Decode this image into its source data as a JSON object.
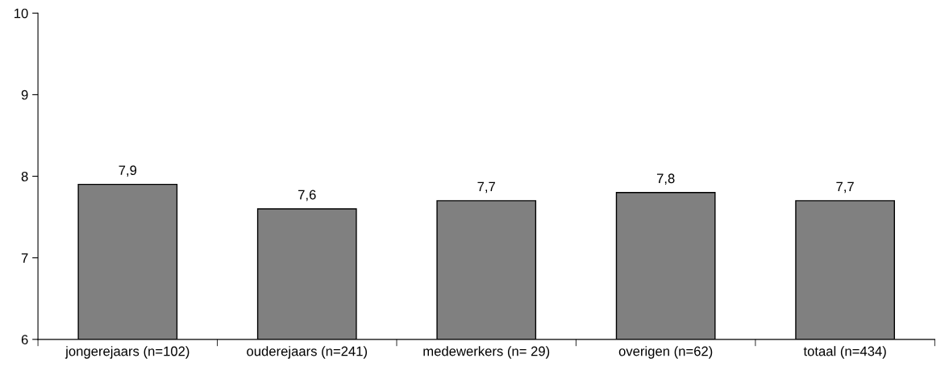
{
  "chart_data": {
    "type": "bar",
    "categories": [
      "jongerejaars (n=102)",
      "ouderejaars (n=241)",
      "medewerkers (n= 29)",
      "overigen (n=62)",
      "totaal (n=434)"
    ],
    "values": [
      7.9,
      7.6,
      7.7,
      7.8,
      7.7
    ],
    "value_labels": [
      "7,9",
      "7,6",
      "7,7",
      "7,8",
      "7,7"
    ],
    "color": "#808080",
    "ylim": [
      6,
      10
    ],
    "yticks": [
      6,
      7,
      8,
      9,
      10
    ],
    "grid": false,
    "legend": false
  }
}
